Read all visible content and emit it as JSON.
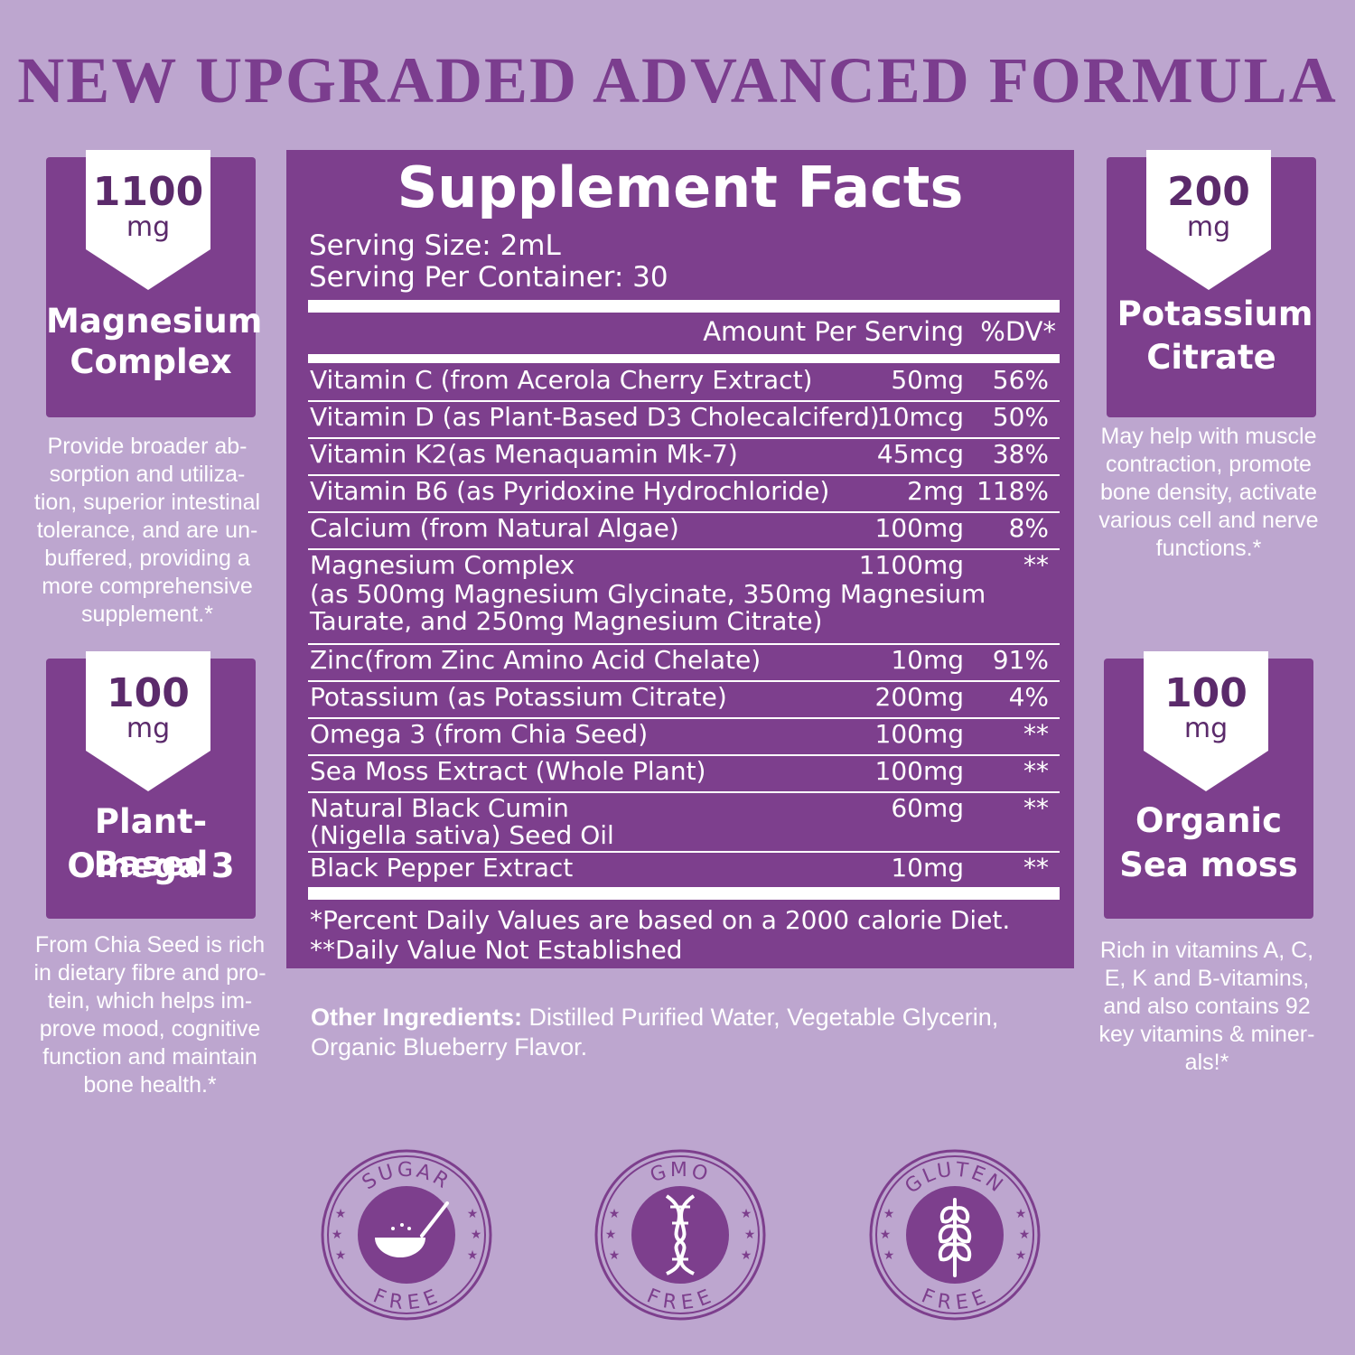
{
  "headline": "NEW UPGRADED ADVANCED FORMULA",
  "cards": {
    "magnesium": {
      "num": "1100",
      "unit": "mg",
      "title1": "Magnesium",
      "title2": "Complex",
      "text": [
        "Provide broader ab-",
        "sorption and utiliza-",
        "tion, superior intestinal",
        "tolerance, and are un-",
        "buffered, providing a",
        "more comprehensive",
        "supplement.*"
      ]
    },
    "omega": {
      "num": "100",
      "unit": "mg",
      "title1": "Plant-Based",
      "title2": "Omega 3",
      "text": [
        "From Chia Seed is rich",
        "in dietary fibre and pro-",
        "tein, which helps im-",
        "prove mood, cognitive",
        "function and maintain",
        "bone health.*"
      ]
    },
    "potassium": {
      "num": "200",
      "unit": "mg",
      "title1": "Potassium",
      "title2": "Citrate",
      "text": [
        "May help with muscle",
        "contraction, promote",
        "bone density, activate",
        "various cell and nerve",
        "functions.*"
      ]
    },
    "seamoss": {
      "num": "100",
      "unit": "mg",
      "title1": "Organic",
      "title2": "Sea moss",
      "text": [
        "Rich in vitamins A, C,",
        "E, K and B-vitamins,",
        "and also contains 92",
        "key vitamins & miner-",
        "als!*"
      ]
    }
  },
  "facts": {
    "title": "Supplement Facts",
    "serving_size": "Serving Size: 2mL",
    "servings_per_container": "Serving Per Container: 30",
    "amount_header": "Amount Per Serving",
    "dv_header": "%DV*",
    "rows": [
      {
        "name": "Vitamin C (from Acerola Cherry Extract)",
        "amount": "50mg",
        "dv": "56%"
      },
      {
        "name": "Vitamin D (as Plant-Based D3 Cholecalciferd)",
        "amount": "10mcg",
        "dv": "50%"
      },
      {
        "name": "Vitamin K2(as Menaquamin Mk-7)",
        "amount": "45mcg",
        "dv": "38%"
      },
      {
        "name": "Vitamin B6 (as Pyridoxine Hydrochloride)",
        "amount": "2mg",
        "dv": "118%"
      },
      {
        "name": "Calcium (from Natural Algae)",
        "amount": "100mg",
        "dv": "8%"
      },
      {
        "name": "Magnesium Complex",
        "name2": "(as 500mg Magnesium Glycinate, 350mg Magnesium",
        "name3": "Taurate, and 250mg Magnesium Citrate)",
        "amount": "1100mg",
        "dv": "**"
      },
      {
        "name": "Zinc(from Zinc Amino Acid Chelate)",
        "amount": "10mg",
        "dv": "91%"
      },
      {
        "name": "Potassium (as Potassium Citrate)",
        "amount": "200mg",
        "dv": "4%"
      },
      {
        "name": "Omega 3 (from Chia Seed)",
        "amount": "100mg",
        "dv": "**"
      },
      {
        "name": "Sea Moss Extract (Whole Plant)",
        "amount": "100mg",
        "dv": "**"
      },
      {
        "name": "Natural Black Cumin",
        "name2": "(Nigella sativa) Seed Oil",
        "amount": "60mg",
        "dv": "**"
      },
      {
        "name": "Black Pepper Extract",
        "amount": "10mg",
        "dv": "**"
      }
    ],
    "footnote1": "*Percent Daily Values are based on a 2000 calorie Diet.",
    "footnote2": "**Daily Value Not Established"
  },
  "other_ingredients": {
    "label": "Other Ingredients:",
    "text": " Distilled Purified Water, Vegetable Glycerin,",
    "text2": "Organic Blueberry Flavor."
  },
  "seals": [
    {
      "top": "SUGAR",
      "bottom": "FREE",
      "icon": "spoon-sugar-icon"
    },
    {
      "top": "GMO",
      "bottom": "FREE",
      "icon": "dna-icon"
    },
    {
      "top": "GLUTEN",
      "bottom": "FREE",
      "icon": "wheat-icon"
    }
  ],
  "colors": {
    "background": "#bda6cf",
    "panel": "#7d3f8d",
    "headline": "#7b3d8e"
  }
}
